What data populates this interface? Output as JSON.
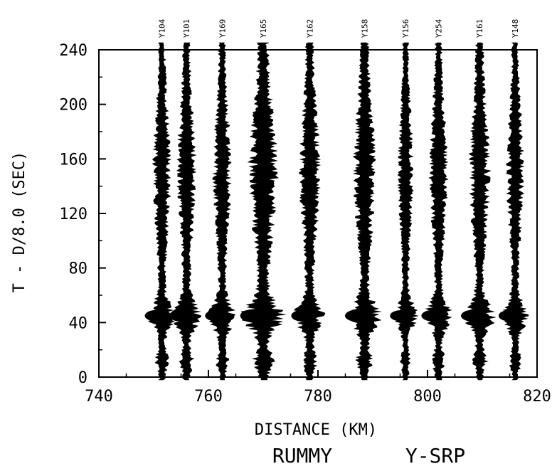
{
  "chart_data": {
    "type": "seismic record section",
    "xlabel": "DISTANCE (KM)",
    "ylabel": "T - D/8.0 (SEC)",
    "caption_left": "RUMMY",
    "caption_right": "Y-SRP",
    "xlim": [
      740,
      820
    ],
    "ylim": [
      0,
      240
    ],
    "xticks": [
      {
        "value": 740,
        "label": "740"
      },
      {
        "value": 760,
        "label": "760"
      },
      {
        "value": 780,
        "label": "780"
      },
      {
        "value": 800,
        "label": "800"
      },
      {
        "value": 820,
        "label": "820"
      }
    ],
    "yticks": [
      {
        "value": 0,
        "label": "0"
      },
      {
        "value": 40,
        "label": "40"
      },
      {
        "value": 80,
        "label": "80"
      },
      {
        "value": 120,
        "label": "120"
      },
      {
        "value": 160,
        "label": "160"
      },
      {
        "value": 200,
        "label": "200"
      },
      {
        "value": 240,
        "label": "240"
      }
    ],
    "grid": false,
    "trace_color": "#000000",
    "stations": [
      {
        "name": "Y104",
        "distance": 751.5,
        "amplitude": 1.0
      },
      {
        "name": "Y101",
        "distance": 756.0,
        "amplitude": 1.05
      },
      {
        "name": "Y169",
        "distance": 762.5,
        "amplitude": 1.0
      },
      {
        "name": "Y165",
        "distance": 770.0,
        "amplitude": 1.6
      },
      {
        "name": "Y162",
        "distance": 778.5,
        "amplitude": 1.15
      },
      {
        "name": "Y158",
        "distance": 788.5,
        "amplitude": 1.25
      },
      {
        "name": "Y156",
        "distance": 796.0,
        "amplitude": 0.85
      },
      {
        "name": "Y254",
        "distance": 802.0,
        "amplitude": 1.0
      },
      {
        "name": "Y161",
        "distance": 809.5,
        "amplitude": 1.15
      },
      {
        "name": "Y148",
        "distance": 816.0,
        "amplitude": 0.95
      }
    ]
  }
}
